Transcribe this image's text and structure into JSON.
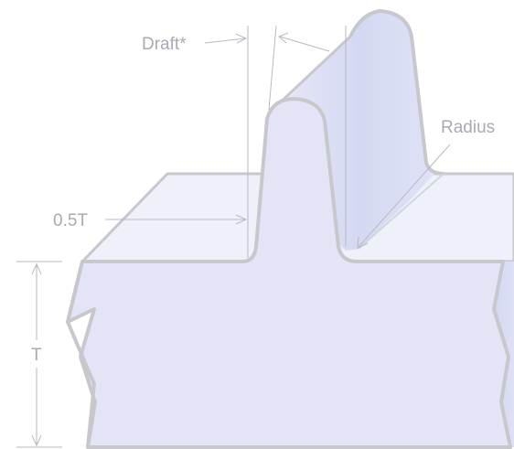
{
  "labels": {
    "draft": "Draft*",
    "radius": "Radius",
    "half_thickness": "0.5T",
    "thickness": "T"
  },
  "colors": {
    "face_front": "#e3e5f7",
    "face_top": "#eef0fa",
    "face_side": "#d6daf3",
    "outline": "#c8c8cc",
    "dimension": "#b9bac2",
    "text": "#a9aab3"
  }
}
